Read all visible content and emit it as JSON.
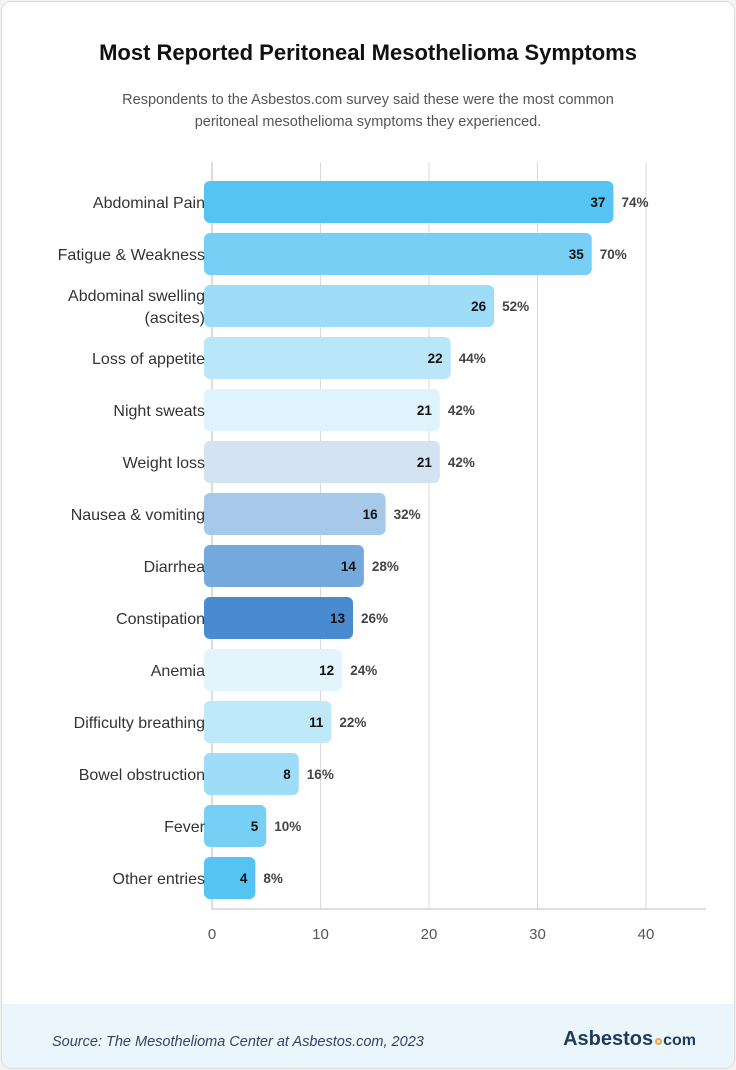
{
  "title": "Most Reported Peritoneal Mesothelioma Symptoms",
  "subtitle": "Respondents to the Asbestos.com survey said these were the most common peritoneal mesothelioma symptoms they experienced.",
  "footer": {
    "source": "Source: The Mesothelioma Center at Asbestos.com, 2023",
    "logo_main": "Asbestos",
    "logo_suffix": "com"
  },
  "chart_data": {
    "type": "bar",
    "orientation": "horizontal",
    "title": "Most Reported Peritoneal Mesothelioma Symptoms",
    "xlabel": "",
    "ylabel": "",
    "xlim": [
      0,
      45
    ],
    "xticks": [
      0,
      10,
      20,
      30,
      40
    ],
    "grid": true,
    "categories": [
      [
        "Abdominal Pain"
      ],
      [
        "Fatigue & Weakness"
      ],
      [
        "Abdominal swelling",
        "(ascites)"
      ],
      [
        "Loss of appetite"
      ],
      [
        "Night sweats"
      ],
      [
        "Weight loss"
      ],
      [
        "Nausea & vomiting"
      ],
      [
        "Diarrhea"
      ],
      [
        "Constipation"
      ],
      [
        "Anemia"
      ],
      [
        "Difficulty breathing"
      ],
      [
        "Bowel obstruction"
      ],
      [
        "Fever"
      ],
      [
        "Other entries"
      ]
    ],
    "values": [
      37,
      35,
      26,
      22,
      21,
      21,
      16,
      14,
      13,
      12,
      11,
      8,
      5,
      4
    ],
    "percent_labels": [
      "74%",
      "70%",
      "52%",
      "44%",
      "42%",
      "42%",
      "32%",
      "28%",
      "26%",
      "24%",
      "22%",
      "16%",
      "10%",
      "8%"
    ],
    "colors": [
      "#55c4f2",
      "#78cff5",
      "#9edcf7",
      "#b9e6f9",
      "#dff3fc",
      "#d3e3f2",
      "#a6c8e9",
      "#74a9dd",
      "#4a8bd0",
      "#e2f4fc",
      "#bfe8f8",
      "#9edcf7",
      "#78cff5",
      "#55c4f2"
    ]
  }
}
